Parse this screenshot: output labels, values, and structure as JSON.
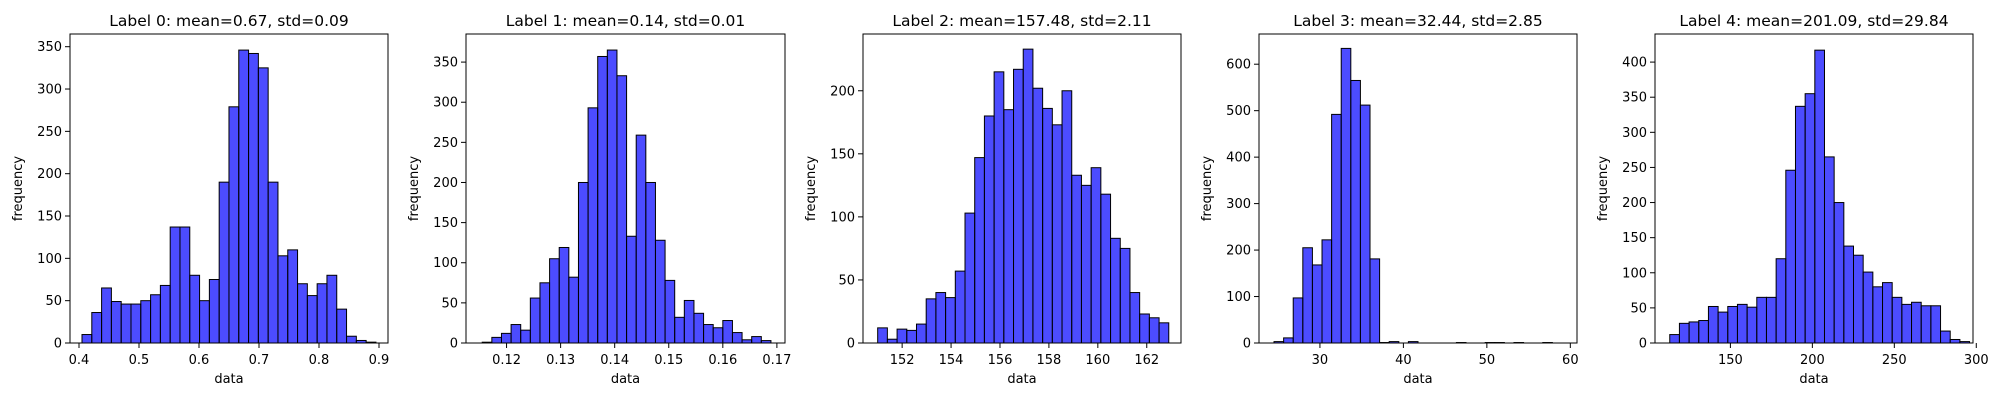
{
  "chart_data": [
    {
      "type": "bar",
      "title": "Label 0: mean=0.67, std=0.09",
      "xlabel": "data",
      "ylabel": "frequency",
      "bar_color": "#0000ff",
      "bar_edge_color": "#000000",
      "xlim": [
        0.385,
        0.915
      ],
      "ylim": [
        0,
        365
      ],
      "xticks": [
        0.4,
        0.5,
        0.6,
        0.7,
        0.8,
        0.9
      ],
      "xtick_labels": [
        "0.4",
        "0.5",
        "0.6",
        "0.7",
        "0.8",
        "0.9"
      ],
      "yticks": [
        0,
        50,
        100,
        150,
        200,
        250,
        300,
        350
      ],
      "ytick_labels": [
        "0",
        "50",
        "100",
        "150",
        "200",
        "250",
        "300",
        "350"
      ],
      "bin_start": 0.405,
      "bin_width": 0.01633,
      "values": [
        10,
        36,
        65,
        49,
        46,
        46,
        50,
        57,
        68,
        137,
        137,
        80,
        50,
        75,
        190,
        279,
        346,
        342,
        325,
        190,
        103,
        110,
        70,
        56,
        70,
        80,
        40,
        8,
        3,
        1
      ]
    },
    {
      "type": "bar",
      "title": "Label 1: mean=0.14, std=0.01",
      "xlabel": "data",
      "ylabel": "frequency",
      "bar_color": "#0000ff",
      "bar_edge_color": "#000000",
      "xlim": [
        0.1125,
        0.1715
      ],
      "ylim": [
        0,
        385
      ],
      "xticks": [
        0.12,
        0.13,
        0.14,
        0.15,
        0.16,
        0.17
      ],
      "xtick_labels": [
        "0.12",
        "0.13",
        "0.14",
        "0.15",
        "0.16",
        "0.17"
      ],
      "yticks": [
        0,
        50,
        100,
        150,
        200,
        250,
        300,
        350
      ],
      "ytick_labels": [
        "0",
        "50",
        "100",
        "150",
        "200",
        "250",
        "300",
        "350"
      ],
      "bin_start": 0.1155,
      "bin_width": 0.00178,
      "values": [
        1,
        7,
        12,
        23,
        16,
        56,
        75,
        105,
        119,
        82,
        200,
        293,
        357,
        365,
        333,
        133,
        259,
        200,
        128,
        78,
        32,
        53,
        37,
        23,
        19,
        28,
        13,
        4,
        8,
        3
      ]
    },
    {
      "type": "bar",
      "title": "Label 2: mean=157.48, std=2.11",
      "xlabel": "data",
      "ylabel": "frequency",
      "bar_color": "#0000ff",
      "bar_edge_color": "#000000",
      "xlim": [
        150.4,
        163.4
      ],
      "ylim": [
        0,
        245
      ],
      "xticks": [
        152,
        154,
        156,
        158,
        160,
        162
      ],
      "xtick_labels": [
        "152",
        "154",
        "156",
        "158",
        "160",
        "162"
      ],
      "yticks": [
        0,
        50,
        100,
        150,
        200
      ],
      "ytick_labels": [
        "0",
        "50",
        "100",
        "150",
        "200"
      ],
      "bin_start": 151.0,
      "bin_width": 0.39667,
      "values": [
        12,
        3,
        11,
        10,
        15,
        35,
        40,
        36,
        57,
        103,
        147,
        180,
        215,
        185,
        217,
        233,
        202,
        186,
        173,
        200,
        133,
        125,
        139,
        118,
        83,
        75,
        40,
        23,
        20,
        16
      ]
    },
    {
      "type": "bar",
      "title": "Label 3: mean=32.44, std=2.85",
      "xlabel": "data",
      "ylabel": "frequency",
      "bar_color": "#0000ff",
      "bar_edge_color": "#000000",
      "xlim": [
        22.7,
        60.8
      ],
      "ylim": [
        0,
        665
      ],
      "xticks": [
        30,
        40,
        50,
        60
      ],
      "xtick_labels": [
        "30",
        "40",
        "50",
        "60"
      ],
      "yticks": [
        0,
        100,
        200,
        300,
        400,
        500,
        600
      ],
      "ytick_labels": [
        "0",
        "100",
        "200",
        "300",
        "400",
        "500",
        "600"
      ],
      "bin_start": 24.5,
      "bin_width": 1.15,
      "values": [
        3,
        11,
        97,
        205,
        168,
        222,
        492,
        634,
        565,
        512,
        181,
        1,
        3,
        0,
        3,
        0,
        0,
        0,
        0,
        1,
        0,
        0,
        1,
        1,
        0,
        1,
        0,
        0,
        1,
        0
      ]
    },
    {
      "type": "bar",
      "title": "Label 4: mean=201.09, std=29.84",
      "xlabel": "data",
      "ylabel": "frequency",
      "bar_color": "#0000ff",
      "bar_edge_color": "#000000",
      "xlim": [
        104,
        298
      ],
      "ylim": [
        0,
        440
      ],
      "xticks": [
        150,
        200,
        250,
        300
      ],
      "xtick_labels": [
        "150",
        "200",
        "250",
        "300"
      ],
      "yticks": [
        0,
        50,
        100,
        150,
        200,
        250,
        300,
        350,
        400
      ],
      "ytick_labels": [
        "0",
        "50",
        "100",
        "150",
        "200",
        "250",
        "300",
        "350",
        "400"
      ],
      "bin_start": 113,
      "bin_width": 5.9,
      "values": [
        12,
        28,
        30,
        32,
        52,
        44,
        52,
        55,
        51,
        65,
        65,
        120,
        246,
        337,
        355,
        417,
        265,
        200,
        138,
        125,
        101,
        80,
        86,
        65,
        55,
        58,
        53,
        53,
        17,
        5,
        2
      ]
    }
  ]
}
